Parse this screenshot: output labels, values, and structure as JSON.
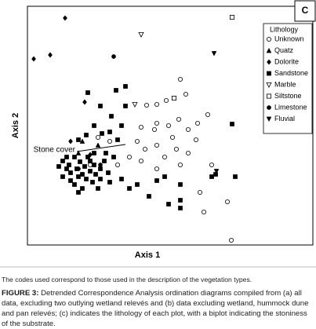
{
  "chart_data": {
    "type": "scatter",
    "panel": "C",
    "xlabel": "Axis 1",
    "ylabel": "Axis 2",
    "xlim": [
      0,
      340
    ],
    "ylim": [
      0,
      304
    ],
    "legend_title": "Lithology",
    "legend": "upper right",
    "series": [
      {
        "name": "Unknown",
        "marker": "circle-open",
        "color": "#000000",
        "x": [
          195,
          202,
          177,
          165,
          152,
          230,
          217,
          193,
          165,
          180,
          205,
          162,
          145,
          185,
          215,
          140,
          165,
          190,
          150,
          130,
          175,
          145,
          205,
          115,
          105,
          235,
          220,
          225,
          255,
          165,
          195,
          260,
          90,
          80
        ],
        "values": [
          211,
          192,
          184,
          179,
          178,
          166,
          155,
          160,
          155,
          152,
          147,
          147,
          150,
          137,
          134,
          132,
          127,
          122,
          122,
          112,
          112,
          107,
          117,
          102,
          132,
          102,
          67,
          42,
          55,
          97,
          102,
          6,
          137,
          102
        ]
      },
      {
        "name": "Quatz",
        "marker": "triangle",
        "color": "#000000",
        "x": [
          70,
          90,
          65
        ],
        "values": [
          132,
          127,
          117
        ]
      },
      {
        "name": "Dolorite",
        "marker": "diamond",
        "color": "#000000",
        "x": [
          48,
          8,
          29,
          73,
          55,
          80
        ],
        "values": [
          289,
          237,
          242,
          182,
          132,
          115
        ]
      },
      {
        "name": "Sandstone",
        "marker": "square",
        "color": "#000000",
        "x": [
          113,
          125,
          77,
          93,
          125,
          107,
          120,
          85,
          95,
          105,
          115,
          75,
          65,
          261,
          235,
          240,
          175,
          165,
          195,
          195,
          195,
          180,
          155,
          130,
          140,
          120,
          265,
          85,
          100,
          110,
          45,
          53,
          60,
          67,
          73,
          80,
          87,
          55,
          65,
          75,
          83,
          60,
          50,
          40,
          70,
          93,
          98,
          93,
          77,
          63,
          45,
          55,
          85,
          103,
          70,
          80,
          90,
          65,
          105,
          50
        ],
        "values": [
          197,
          202,
          194,
          177,
          177,
          164,
          152,
          152,
          142,
          144,
          134,
          140,
          134,
          154,
          87,
          90,
          87,
          82,
          77,
          57,
          47,
          52,
          62,
          72,
          77,
          84,
          87,
          117,
          117,
          112,
          107,
          102,
          112,
          106,
          100,
          94,
          90,
          92,
          87,
          84,
          80,
          77,
          97,
          100,
          72,
          97,
          107,
          84,
          112,
          97,
          87,
          82,
          102,
          92,
          90,
          107,
          72,
          67,
          80,
          112
        ]
      },
      {
        "name": "Marble",
        "marker": "triangle-down-open",
        "color": "#000000",
        "x": [
          145,
          137
        ],
        "values": [
          268,
          179
        ]
      },
      {
        "name": "Siltstone",
        "marker": "square-open",
        "color": "#000000",
        "x": [
          261,
          187
        ],
        "values": [
          290,
          187
        ]
      },
      {
        "name": "Limestone",
        "marker": "circle",
        "color": "#000000",
        "x": [
          110,
          93,
          65
        ],
        "values": [
          240,
          102,
          97
        ]
      },
      {
        "name": "Fluvial",
        "marker": "triangle-down",
        "color": "#000000",
        "x": [
          238,
          241
        ],
        "values": [
          244,
          94
        ]
      }
    ],
    "annotations": [
      {
        "text": "Stone cover",
        "x": [
          63,
          125
        ],
        "y": [
          119,
          128
        ]
      }
    ]
  },
  "notes": "The codes used correspond to those used in the description of the vegetation types.",
  "caption": {
    "label": "FIGURE 3:",
    "text": "Detrended Correspondence Analysis ordination diagrams compiled from (a) all data, excluding two outlying wetland relevés and (b) data excluding wetland, hummock dune and pan relevés; (c) indicates the lithology of each plot, with a biplot indicating the stoniness of the substrate."
  }
}
